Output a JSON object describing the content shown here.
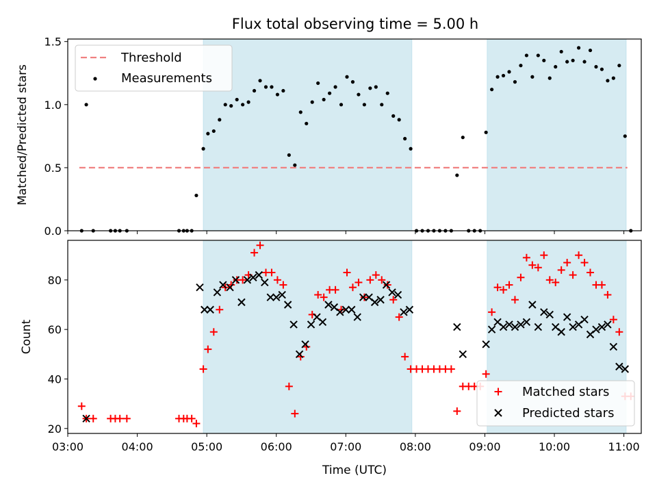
{
  "figure": {
    "title": "Flux total observing time = 5.00 h"
  },
  "chart_data": [
    {
      "type": "scatter",
      "panel": "top",
      "title": "Flux total observing time = 5.00 h",
      "xlabel": "",
      "ylabel": "Matched/Predicted stars",
      "xlim": [
        "03:00",
        "11:15"
      ],
      "ylim": [
        0,
        1.52
      ],
      "yticks": [
        0.0,
        0.5,
        1.0,
        1.5
      ],
      "ytick_labels": [
        "0.0",
        "0.5",
        "1.0",
        "1.5"
      ],
      "shaded_ranges": [
        [
          "04:57",
          "07:57"
        ],
        [
          "09:02",
          "11:02"
        ]
      ],
      "threshold": {
        "name": "Threshold",
        "value": 0.5,
        "x_range": [
          "03:10",
          "11:03"
        ],
        "color": "#f08080"
      },
      "legend": {
        "placement": "top-left",
        "entries": [
          "Threshold",
          "Measurements"
        ]
      },
      "series": [
        {
          "name": "Measurements",
          "marker": "dot",
          "color": "#000000",
          "x": [
            "03:12",
            "03:16",
            "03:22",
            "03:37",
            "03:41",
            "03:45",
            "03:51",
            "04:36",
            "04:40",
            "04:43",
            "04:47",
            "04:51",
            "04:57",
            "05:01",
            "05:06",
            "05:11",
            "05:16",
            "05:21",
            "05:26",
            "05:31",
            "05:36",
            "05:41",
            "05:46",
            "05:51",
            "05:56",
            "06:01",
            "06:06",
            "06:11",
            "06:16",
            "06:21",
            "06:26",
            "06:31",
            "06:36",
            "06:41",
            "06:46",
            "06:51",
            "06:56",
            "07:01",
            "07:06",
            "07:11",
            "07:16",
            "07:21",
            "07:26",
            "07:31",
            "07:36",
            "07:41",
            "07:46",
            "07:51",
            "07:56",
            "08:01",
            "08:06",
            "08:11",
            "08:16",
            "08:21",
            "08:26",
            "08:31",
            "08:36",
            "08:41",
            "08:46",
            "08:51",
            "08:56",
            "09:01",
            "09:06",
            "09:11",
            "09:16",
            "09:21",
            "09:26",
            "09:31",
            "09:36",
            "09:41",
            "09:46",
            "09:51",
            "09:56",
            "10:01",
            "10:06",
            "10:11",
            "10:16",
            "10:21",
            "10:26",
            "10:31",
            "10:36",
            "10:41",
            "10:46",
            "10:51",
            "10:56",
            "11:01",
            "11:06"
          ],
          "y": [
            0,
            1.0,
            0,
            0,
            0,
            0,
            0,
            0,
            0,
            0,
            0,
            0.28,
            0.65,
            0.77,
            0.79,
            0.88,
            1.0,
            0.99,
            1.04,
            1.0,
            1.02,
            1.11,
            1.19,
            1.14,
            1.14,
            1.08,
            1.11,
            0.6,
            0.52,
            0.94,
            0.85,
            1.02,
            1.17,
            1.04,
            1.09,
            1.14,
            1.0,
            1.22,
            1.18,
            1.08,
            1.0,
            1.13,
            1.14,
            1.0,
            1.09,
            0.91,
            0.88,
            0.73,
            0.65,
            0,
            0,
            0,
            0,
            0,
            0,
            0,
            0.44,
            0.74,
            0,
            0,
            0,
            0.78,
            1.12,
            1.22,
            1.23,
            1.26,
            1.18,
            1.31,
            1.39,
            1.22,
            1.39,
            1.35,
            1.21,
            1.3,
            1.42,
            1.34,
            1.35,
            1.45,
            1.34,
            1.43,
            1.3,
            1.28,
            1.19,
            1.21,
            1.31,
            0.75,
            0
          ]
        }
      ]
    },
    {
      "type": "scatter",
      "panel": "bottom",
      "title": "",
      "xlabel": "Time (UTC)",
      "ylabel": "Count",
      "xlim": [
        "03:00",
        "11:15"
      ],
      "xticks": [
        "03:00",
        "04:00",
        "05:00",
        "06:00",
        "07:00",
        "08:00",
        "09:00",
        "10:00",
        "11:00"
      ],
      "ylim": [
        18,
        96
      ],
      "yticks": [
        20,
        40,
        60,
        80
      ],
      "ytick_labels": [
        "20",
        "40",
        "60",
        "80"
      ],
      "shaded_ranges": [
        [
          "04:57",
          "07:57"
        ],
        [
          "09:02",
          "11:02"
        ]
      ],
      "legend": {
        "placement": "bottom-right",
        "entries": [
          "Matched stars",
          "Predicted stars"
        ]
      },
      "series": [
        {
          "name": "Matched stars",
          "marker": "plus",
          "color": "#ff0000",
          "x": [
            "03:12",
            "03:16",
            "03:22",
            "03:37",
            "03:41",
            "03:45",
            "03:51",
            "04:36",
            "04:40",
            "04:43",
            "04:47",
            "04:51",
            "04:57",
            "05:01",
            "05:06",
            "05:11",
            "05:16",
            "05:21",
            "05:26",
            "05:31",
            "05:36",
            "05:41",
            "05:46",
            "05:51",
            "05:56",
            "06:01",
            "06:06",
            "06:11",
            "06:16",
            "06:21",
            "06:26",
            "06:31",
            "06:36",
            "06:41",
            "06:46",
            "06:51",
            "06:56",
            "07:01",
            "07:06",
            "07:11",
            "07:16",
            "07:21",
            "07:26",
            "07:31",
            "07:36",
            "07:41",
            "07:46",
            "07:51",
            "07:56",
            "08:01",
            "08:06",
            "08:11",
            "08:16",
            "08:21",
            "08:26",
            "08:31",
            "08:36",
            "08:41",
            "08:46",
            "08:51",
            "08:56",
            "09:01",
            "09:06",
            "09:11",
            "09:16",
            "09:21",
            "09:26",
            "09:31",
            "09:36",
            "09:41",
            "09:46",
            "09:51",
            "09:56",
            "10:01",
            "10:06",
            "10:11",
            "10:16",
            "10:21",
            "10:26",
            "10:31",
            "10:36",
            "10:41",
            "10:46",
            "10:51",
            "10:56",
            "11:01",
            "11:06"
          ],
          "y": [
            29,
            24,
            24,
            24,
            24,
            24,
            24,
            24,
            24,
            24,
            24,
            22,
            44,
            52,
            59,
            68,
            77,
            78,
            80,
            80,
            82,
            91,
            94,
            83,
            83,
            80,
            78,
            37,
            26,
            49,
            53,
            66,
            74,
            73,
            76,
            76,
            68,
            83,
            77,
            79,
            73,
            80,
            82,
            80,
            78,
            72,
            65,
            49,
            44,
            44,
            44,
            44,
            44,
            44,
            44,
            44,
            27,
            37,
            37,
            37,
            37,
            42,
            67,
            77,
            76,
            78,
            72,
            81,
            89,
            86,
            85,
            90,
            80,
            79,
            84,
            87,
            82,
            90,
            87,
            83,
            78,
            78,
            74,
            64,
            59,
            33,
            33
          ]
        },
        {
          "name": "Predicted stars",
          "marker": "x",
          "color": "#000000",
          "x": [
            "03:16",
            "04:54",
            "04:58",
            "05:03",
            "05:09",
            "05:14",
            "05:20",
            "05:25",
            "05:30",
            "05:35",
            "05:40",
            "05:45",
            "05:50",
            "05:55",
            "06:00",
            "06:05",
            "06:10",
            "06:15",
            "06:20",
            "06:25",
            "06:30",
            "06:35",
            "06:40",
            "06:45",
            "06:50",
            "06:55",
            "07:00",
            "07:05",
            "07:10",
            "07:15",
            "07:20",
            "07:25",
            "07:30",
            "07:35",
            "07:40",
            "07:45",
            "07:50",
            "07:55",
            "08:36",
            "08:41",
            "09:01",
            "09:06",
            "09:11",
            "09:16",
            "09:21",
            "09:26",
            "09:31",
            "09:36",
            "09:41",
            "09:46",
            "09:51",
            "09:56",
            "10:01",
            "10:06",
            "10:11",
            "10:16",
            "10:21",
            "10:26",
            "10:31",
            "10:36",
            "10:41",
            "10:46",
            "10:51",
            "10:56",
            "11:01"
          ],
          "y": [
            24,
            77,
            68,
            68,
            75,
            78,
            77,
            80,
            71,
            80,
            81,
            82,
            79,
            73,
            73,
            74,
            70,
            62,
            50,
            54,
            62,
            65,
            63,
            70,
            69,
            67,
            68,
            68,
            65,
            73,
            73,
            71,
            72,
            78,
            75,
            74,
            67,
            68,
            61,
            50,
            54,
            60,
            63,
            61,
            62,
            61,
            62,
            63,
            70,
            61,
            67,
            66,
            61,
            59,
            65,
            61,
            62,
            64,
            58,
            60,
            61,
            62,
            53,
            45,
            44
          ]
        }
      ]
    }
  ]
}
